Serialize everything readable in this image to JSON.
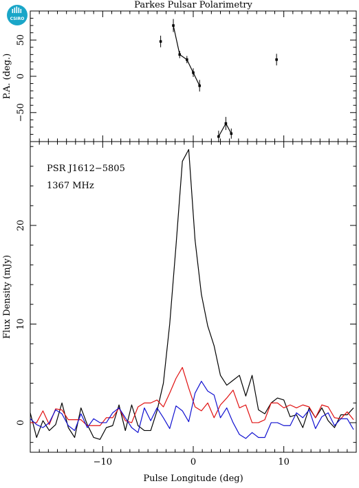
{
  "title": "Parkes Pulsar Polarimetry",
  "logo": {
    "icon": "csiro-logo",
    "text": "CSIRO",
    "color": "#1aa6c8"
  },
  "annotations": {
    "psr": "PSR J1612−5805",
    "freq": "1367 MHz"
  },
  "colors": {
    "total": "#000000",
    "linear": "#e01010",
    "circular": "#1010d0"
  },
  "chart_data": [
    {
      "type": "scatter",
      "panel": "position-angle",
      "ylabel": "P.A. (deg.)",
      "xlim": [
        -18,
        18
      ],
      "ylim": [
        -90,
        90
      ],
      "yticks": [
        -50,
        0,
        50
      ],
      "ytick_labels": [
        "−50",
        "0",
        "50"
      ],
      "points": [
        {
          "x": -3.6,
          "y": 48,
          "err": 8
        },
        {
          "x": -2.2,
          "y": 70,
          "err": 9
        },
        {
          "x": -1.5,
          "y": 30,
          "err": 5
        },
        {
          "x": -0.7,
          "y": 23,
          "err": 5
        },
        {
          "x": 0.0,
          "y": 5,
          "err": 6
        },
        {
          "x": 0.7,
          "y": -13,
          "err": 8
        },
        {
          "x": 2.8,
          "y": -83,
          "err": 8
        },
        {
          "x": 3.6,
          "y": -65,
          "err": 9
        },
        {
          "x": 4.2,
          "y": -79,
          "err": 7
        },
        {
          "x": 9.2,
          "y": 23,
          "err": 8
        }
      ],
      "swing_curve": [
        [
          -2.2,
          70
        ],
        [
          -1.5,
          30
        ],
        [
          -0.7,
          23
        ],
        [
          0.0,
          5
        ],
        [
          0.7,
          -13
        ]
      ],
      "swing_curve_2": [
        [
          2.8,
          -83
        ],
        [
          3.6,
          -65
        ],
        [
          4.2,
          -79
        ]
      ]
    },
    {
      "type": "line",
      "panel": "profile",
      "xlabel": "Pulse Longitude (deg)",
      "ylabel": "Flux Density (mJy)",
      "xlim": [
        -18,
        18
      ],
      "ylim": [
        -3,
        28.5
      ],
      "xticks": [
        -10,
        0,
        10
      ],
      "xtick_labels": [
        "−10",
        "0",
        "10"
      ],
      "yticks": [
        0,
        10,
        20
      ],
      "ytick_labels": [
        "0",
        "10",
        "20"
      ],
      "x": [
        -18,
        -17.3,
        -16.6,
        -15.9,
        -15.2,
        -14.5,
        -13.8,
        -13.1,
        -12.4,
        -11.7,
        -11,
        -10.3,
        -9.6,
        -8.9,
        -8.2,
        -7.5,
        -6.8,
        -6.1,
        -5.4,
        -4.7,
        -4,
        -3.3,
        -2.6,
        -1.9,
        -1.2,
        -0.5,
        0.2,
        0.9,
        1.6,
        2.3,
        3,
        3.7,
        4.4,
        5.1,
        5.8,
        6.5,
        7.2,
        7.9,
        8.6,
        9.3,
        10,
        10.7,
        11.4,
        12.1,
        12.8,
        13.5,
        14.2,
        14.9,
        15.6,
        16.3,
        17,
        17.7
      ],
      "series": [
        {
          "color_key": "total",
          "values": [
            1.0,
            -1.5,
            0.2,
            -0.8,
            -0.2,
            2.0,
            -0.5,
            -1.5,
            1.5,
            -0.2,
            -1.5,
            -1.7,
            -0.5,
            -0.3,
            1.8,
            -0.8,
            1.8,
            -0.3,
            -0.8,
            -0.8,
            1.2,
            4.0,
            10.0,
            18.0,
            26.5,
            27.7,
            18.5,
            13.0,
            9.8,
            7.8,
            4.8,
            3.8,
            4.3,
            4.8,
            2.7,
            4.8,
            1.3,
            0.9,
            2.0,
            2.5,
            2.3,
            0.6,
            0.8,
            -0.5,
            1.5,
            0.5,
            1.5,
            0.2,
            -0.5,
            0.8,
            0.8,
            1.5
          ]
        },
        {
          "color_key": "linear",
          "values": [
            0.0,
            0.0,
            1.2,
            -0.2,
            1.4,
            1.3,
            0.3,
            0.3,
            0.3,
            -0.3,
            -0.3,
            -0.3,
            0.5,
            0.5,
            1.5,
            0.2,
            0.0,
            1.6,
            2.0,
            2.0,
            2.3,
            1.6,
            3.0,
            4.5,
            5.6,
            3.5,
            1.6,
            1.2,
            2.0,
            0.5,
            1.8,
            2.5,
            3.3,
            1.5,
            1.8,
            0.0,
            0.0,
            0.3,
            2.0,
            2.0,
            1.5,
            1.8,
            1.5,
            1.8,
            1.6,
            0.5,
            1.8,
            1.6,
            0.5,
            0.4,
            1.1,
            0.3
          ]
        },
        {
          "color_key": "circular",
          "values": [
            0.4,
            -0.2,
            -0.5,
            0.0,
            1.3,
            0.9,
            -0.3,
            -0.8,
            0.9,
            -0.5,
            0.4,
            0.0,
            0.0,
            1.0,
            1.5,
            0.5,
            -0.5,
            -1.0,
            1.5,
            0.2,
            1.5,
            0.5,
            -0.6,
            1.7,
            1.2,
            0.1,
            3.0,
            4.2,
            3.2,
            2.8,
            0.5,
            1.5,
            0.0,
            -1.2,
            -1.6,
            -1.0,
            -1.5,
            -1.5,
            0.0,
            0.0,
            -0.3,
            -0.3,
            1.0,
            0.5,
            1.3,
            -0.6,
            0.6,
            1.0,
            -0.3,
            0.4,
            0.4,
            -0.7
          ]
        }
      ]
    }
  ]
}
